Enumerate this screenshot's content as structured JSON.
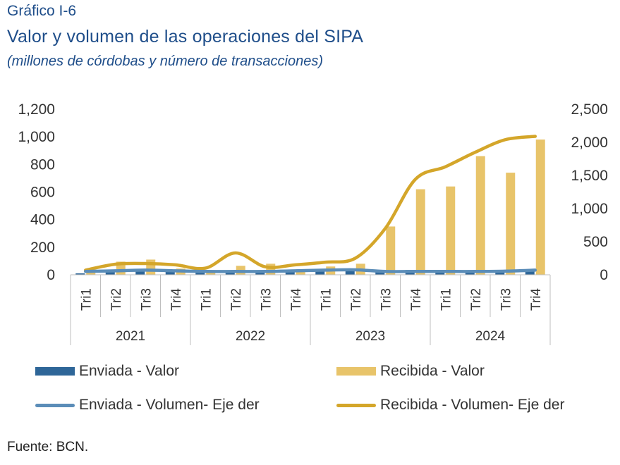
{
  "header": {
    "figure_number": "Gráfico I-6",
    "title": "Valor y volumen de las operaciones del SIPA",
    "subtitle": "(millones de córdobas y número de transacciones)"
  },
  "footer": {
    "source": "Fuente: BCN."
  },
  "colors": {
    "title": "#1f4e8a",
    "enviada": "#2e6698",
    "enviada_line": "#5b8db8",
    "recibida": "#e8c46a",
    "recibida_line": "#d4a62a"
  },
  "chart_data": {
    "type": "bar",
    "years": [
      "2021",
      "2022",
      "2023",
      "2024"
    ],
    "quarters": [
      "Tri1",
      "Tri2",
      "Tri3",
      "Tri4"
    ],
    "categories": [
      "Tri1",
      "Tri2",
      "Tri3",
      "Tri4",
      "Tri1",
      "Tri2",
      "Tri3",
      "Tri4",
      "Tri1",
      "Tri2",
      "Tri3",
      "Tri4",
      "Tri1",
      "Tri2",
      "Tri3",
      "Tri4"
    ],
    "left_axis": {
      "ylim": [
        0,
        1200
      ],
      "ticks": [
        "0",
        "200",
        "400",
        "600",
        "800",
        "1,000",
        "1,200"
      ]
    },
    "right_axis": {
      "ylim": [
        0,
        2500
      ],
      "ticks": [
        "0",
        "500",
        "1,000",
        "1,500",
        "2,000",
        "2,500"
      ]
    },
    "series": [
      {
        "name": "Enviada - Valor",
        "type": "bar",
        "axis": "left",
        "values": [
          10,
          35,
          30,
          35,
          20,
          20,
          25,
          35,
          40,
          30,
          20,
          35,
          25,
          25,
          30,
          35
        ]
      },
      {
        "name": "Recibida - Valor",
        "type": "bar",
        "axis": "left",
        "values": [
          15,
          95,
          110,
          45,
          25,
          65,
          80,
          40,
          60,
          80,
          350,
          620,
          640,
          860,
          740,
          980
        ]
      },
      {
        "name": "Enviada - Volumen- Eje der",
        "type": "line",
        "axis": "right",
        "values": [
          50,
          60,
          70,
          60,
          50,
          50,
          50,
          60,
          70,
          75,
          50,
          50,
          50,
          50,
          55,
          70
        ]
      },
      {
        "name": "Recibida - Volumen- Eje der",
        "type": "line",
        "axis": "right",
        "values": [
          70,
          160,
          170,
          150,
          100,
          330,
          120,
          150,
          190,
          250,
          700,
          1440,
          1630,
          1850,
          2040,
          2090
        ]
      }
    ],
    "legend_position": "bottom",
    "grid": false
  }
}
